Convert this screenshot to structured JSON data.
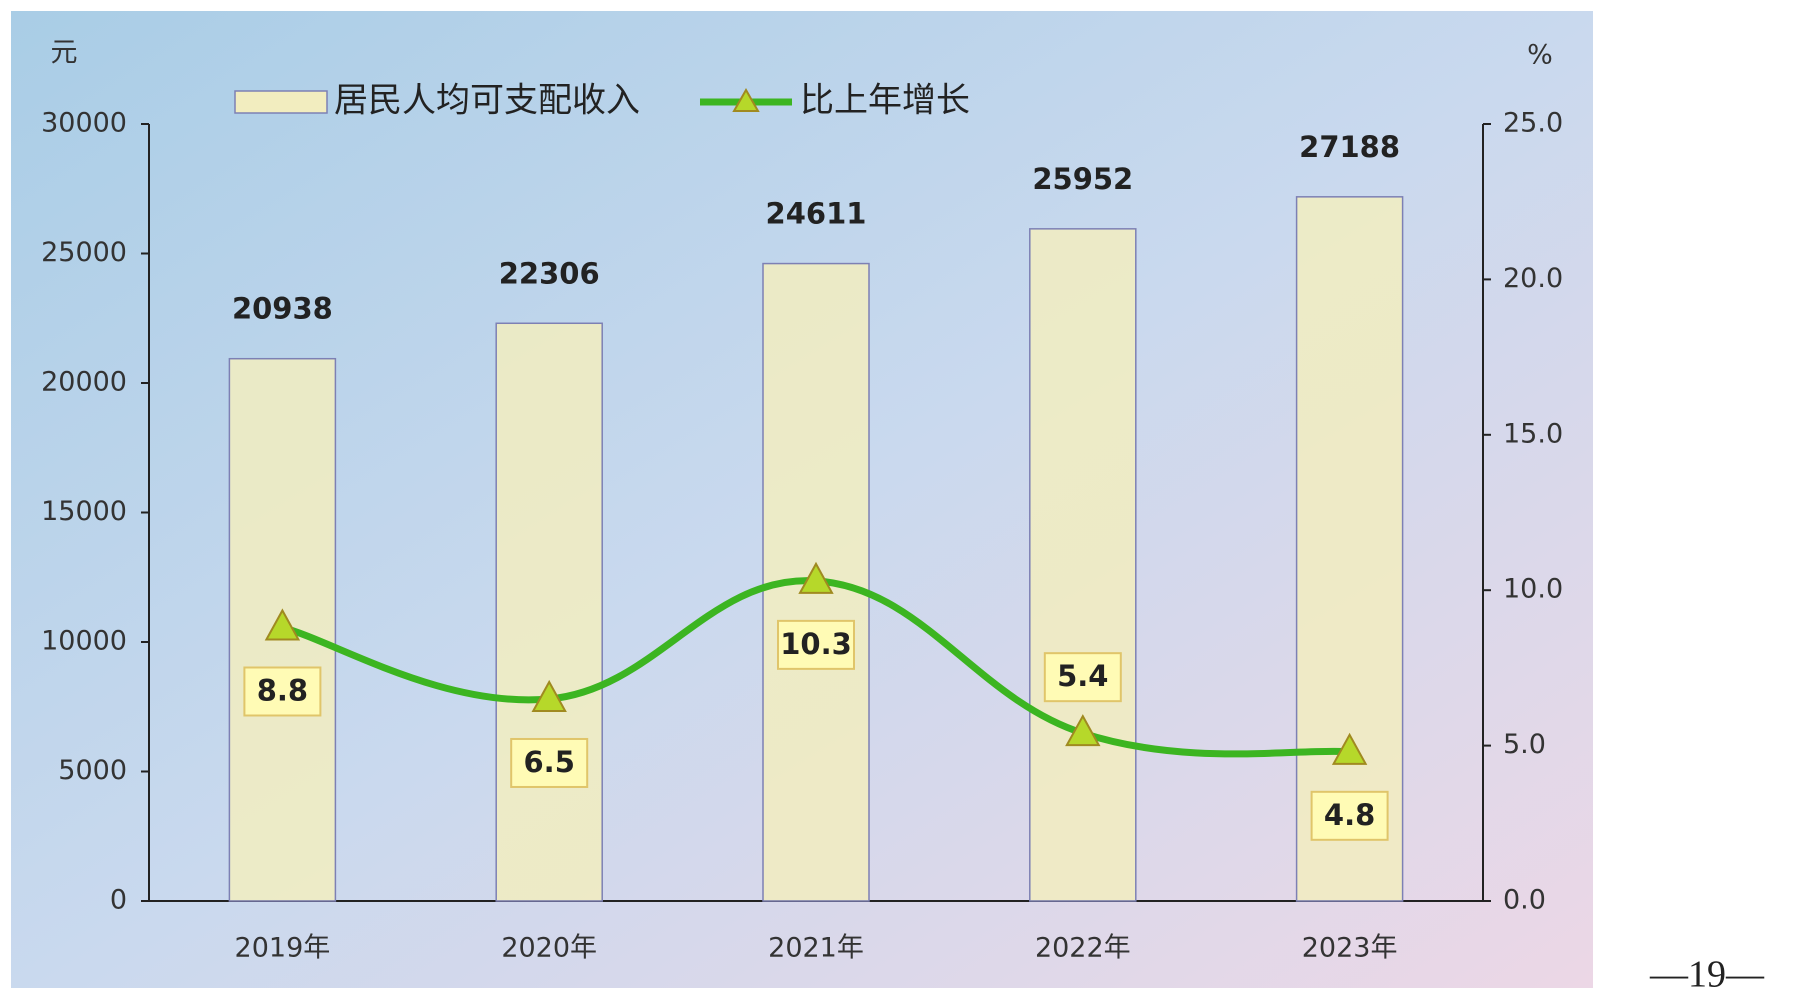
{
  "chart_data": {
    "type": "bar",
    "y_unit": "元",
    "y2_unit": "%",
    "categories": [
      "2019年",
      "2020年",
      "2021年",
      "2022年",
      "2023年"
    ],
    "series": [
      {
        "name": "居民人均可支配收入",
        "type": "bar",
        "color": "#f2edbf",
        "values": [
          20938,
          22306,
          24611,
          25952,
          27188
        ]
      },
      {
        "name": "比上年增长",
        "type": "line",
        "axis": "y2",
        "color": "#3cb521",
        "values": [
          8.8,
          6.5,
          10.3,
          5.4,
          4.8
        ]
      }
    ],
    "ylim": [
      0,
      30000
    ],
    "yticks": [
      0,
      5000,
      10000,
      15000,
      20000,
      25000,
      30000
    ],
    "y2lim": [
      0,
      25
    ],
    "y2ticks": [
      {
        "value": 0,
        "label": "0.0"
      },
      {
        "value": 5,
        "label": "5.0"
      },
      {
        "value": 10,
        "label": "10.0"
      },
      {
        "value": 15,
        "label": "15.0"
      },
      {
        "value": 20,
        "label": "20.0"
      },
      {
        "value": 25,
        "label": "25.0"
      }
    ],
    "grid": false,
    "legend": "top"
  },
  "page_number": "—19—"
}
